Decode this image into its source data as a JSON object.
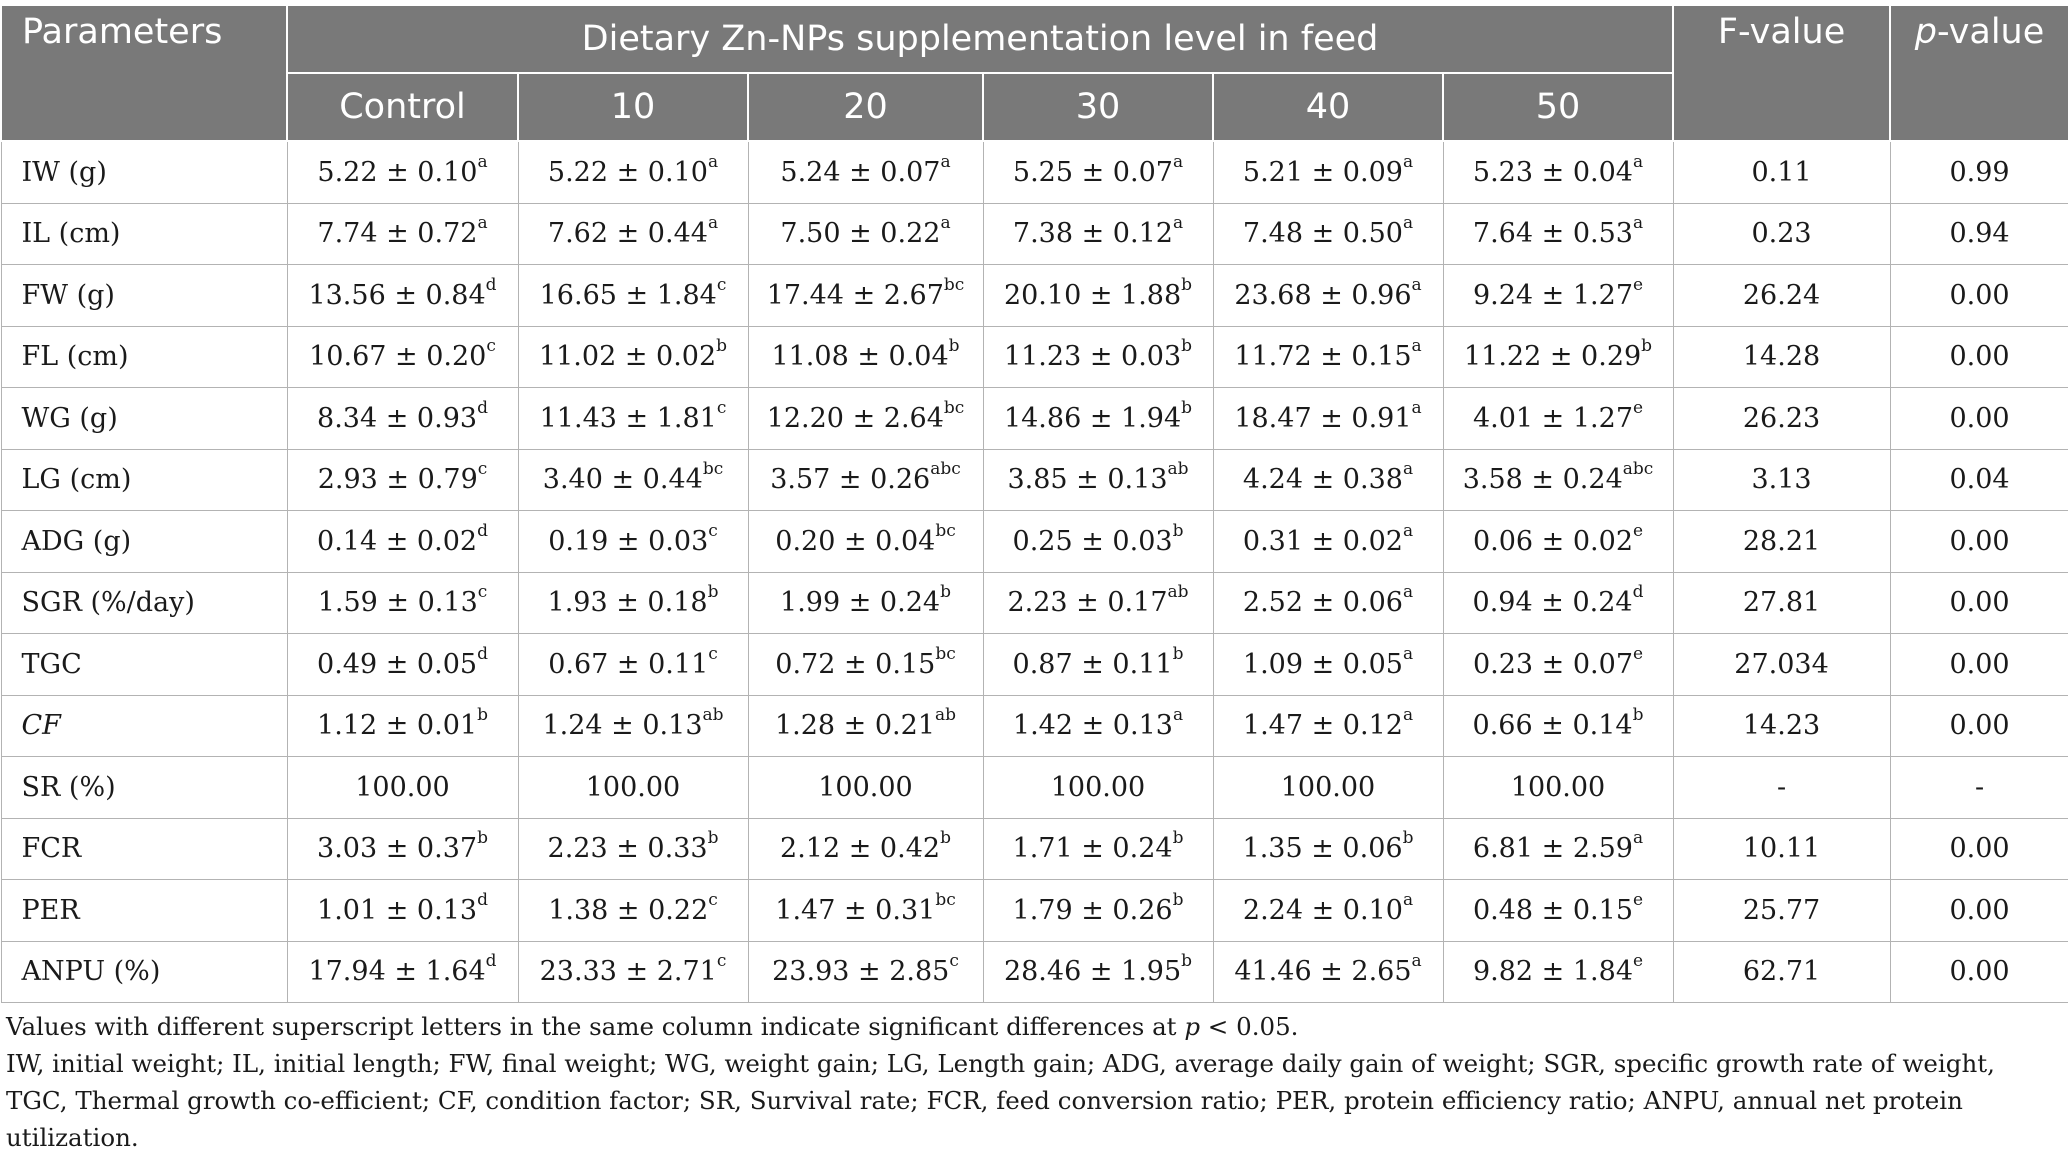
{
  "table": {
    "header": {
      "parameters": "Parameters",
      "group_title": "Dietary Zn-NPs supplementation level in feed",
      "f_value": "F-value",
      "p_value_italic": "p",
      "p_value_rest": "-value",
      "levels": [
        "Control",
        "10",
        "20",
        "30",
        "40",
        "50"
      ]
    },
    "rows": [
      {
        "param": "IW (g)",
        "italic": false,
        "cells": [
          [
            "5.22 ± 0.10",
            "a"
          ],
          [
            "5.22 ± 0.10",
            "a"
          ],
          [
            "5.24 ± 0.07",
            "a"
          ],
          [
            "5.25 ± 0.07",
            "a"
          ],
          [
            "5.21 ± 0.09",
            "a"
          ],
          [
            "5.23 ± 0.04",
            "a"
          ]
        ],
        "f": "0.11",
        "p": "0.99"
      },
      {
        "param": "IL (cm)",
        "italic": false,
        "cells": [
          [
            "7.74 ± 0.72",
            "a"
          ],
          [
            "7.62 ± 0.44",
            "a"
          ],
          [
            "7.50 ± 0.22",
            "a"
          ],
          [
            "7.38 ± 0.12",
            "a"
          ],
          [
            "7.48 ± 0.50",
            "a"
          ],
          [
            "7.64 ± 0.53",
            "a"
          ]
        ],
        "f": "0.23",
        "p": "0.94"
      },
      {
        "param": "FW (g)",
        "italic": false,
        "cells": [
          [
            "13.56 ± 0.84",
            "d"
          ],
          [
            "16.65 ± 1.84",
            "c"
          ],
          [
            "17.44 ± 2.67",
            "bc"
          ],
          [
            "20.10 ± 1.88",
            "b"
          ],
          [
            "23.68 ± 0.96",
            "a"
          ],
          [
            "9.24 ± 1.27",
            "e"
          ]
        ],
        "f": "26.24",
        "p": "0.00"
      },
      {
        "param": "FL (cm)",
        "italic": false,
        "cells": [
          [
            "10.67 ± 0.20",
            "c"
          ],
          [
            "11.02 ± 0.02",
            "b"
          ],
          [
            "11.08 ± 0.04",
            "b"
          ],
          [
            "11.23 ± 0.03",
            "b"
          ],
          [
            "11.72 ± 0.15",
            "a"
          ],
          [
            "11.22 ± 0.29",
            "b"
          ]
        ],
        "f": "14.28",
        "p": "0.00"
      },
      {
        "param": "WG (g)",
        "italic": false,
        "cells": [
          [
            "8.34 ± 0.93",
            "d"
          ],
          [
            "11.43 ± 1.81",
            "c"
          ],
          [
            "12.20 ± 2.64",
            "bc"
          ],
          [
            "14.86 ± 1.94",
            "b"
          ],
          [
            "18.47 ± 0.91",
            "a"
          ],
          [
            "4.01 ± 1.27",
            "e"
          ]
        ],
        "f": "26.23",
        "p": "0.00"
      },
      {
        "param": "LG (cm)",
        "italic": false,
        "cells": [
          [
            "2.93 ± 0.79",
            "c"
          ],
          [
            "3.40 ± 0.44",
            "bc"
          ],
          [
            "3.57 ± 0.26",
            "abc"
          ],
          [
            "3.85 ± 0.13",
            "ab"
          ],
          [
            "4.24 ± 0.38",
            "a"
          ],
          [
            "3.58 ± 0.24",
            "abc"
          ]
        ],
        "f": "3.13",
        "p": "0.04"
      },
      {
        "param": "ADG (g)",
        "italic": false,
        "cells": [
          [
            "0.14 ± 0.02",
            "d"
          ],
          [
            "0.19 ± 0.03",
            "c"
          ],
          [
            "0.20 ± 0.04",
            "bc"
          ],
          [
            "0.25 ± 0.03",
            "b"
          ],
          [
            "0.31 ± 0.02",
            "a"
          ],
          [
            "0.06 ± 0.02",
            "e"
          ]
        ],
        "f": "28.21",
        "p": "0.00"
      },
      {
        "param": "SGR (%/day)",
        "italic": false,
        "cells": [
          [
            "1.59 ± 0.13",
            "c"
          ],
          [
            "1.93 ± 0.18",
            "b"
          ],
          [
            "1.99 ± 0.24",
            "b"
          ],
          [
            "2.23 ± 0.17",
            "ab"
          ],
          [
            "2.52 ± 0.06",
            "a"
          ],
          [
            "0.94 ± 0.24",
            "d"
          ]
        ],
        "f": "27.81",
        "p": "0.00"
      },
      {
        "param": "TGC",
        "italic": false,
        "cells": [
          [
            "0.49 ± 0.05",
            "d"
          ],
          [
            "0.67 ± 0.11",
            "c"
          ],
          [
            "0.72 ± 0.15",
            "bc"
          ],
          [
            "0.87 ± 0.11",
            "b"
          ],
          [
            "1.09 ± 0.05",
            "a"
          ],
          [
            "0.23 ± 0.07",
            "e"
          ]
        ],
        "f": "27.034",
        "p": "0.00"
      },
      {
        "param": "CF",
        "italic": true,
        "cells": [
          [
            "1.12 ± 0.01",
            "b"
          ],
          [
            "1.24 ± 0.13",
            "ab"
          ],
          [
            "1.28 ± 0.21",
            "ab"
          ],
          [
            "1.42 ± 0.13",
            "a"
          ],
          [
            "1.47 ± 0.12",
            "a"
          ],
          [
            "0.66 ± 0.14",
            "b"
          ]
        ],
        "f": "14.23",
        "p": "0.00"
      },
      {
        "param": "SR (%)",
        "italic": false,
        "cells": [
          [
            "100.00",
            ""
          ],
          [
            "100.00",
            ""
          ],
          [
            "100.00",
            ""
          ],
          [
            "100.00",
            ""
          ],
          [
            "100.00",
            ""
          ],
          [
            "100.00",
            ""
          ]
        ],
        "f": "-",
        "p": "-"
      },
      {
        "param": "FCR",
        "italic": false,
        "cells": [
          [
            "3.03 ± 0.37",
            "b"
          ],
          [
            "2.23 ± 0.33",
            "b"
          ],
          [
            "2.12 ± 0.42",
            "b"
          ],
          [
            "1.71 ± 0.24",
            "b"
          ],
          [
            "1.35 ± 0.06",
            "b"
          ],
          [
            "6.81 ± 2.59",
            "a"
          ]
        ],
        "f": "10.11",
        "p": "0.00"
      },
      {
        "param": "PER",
        "italic": false,
        "cells": [
          [
            "1.01 ± 0.13",
            "d"
          ],
          [
            "1.38 ± 0.22",
            "c"
          ],
          [
            "1.47 ± 0.31",
            "bc"
          ],
          [
            "1.79 ± 0.26",
            "b"
          ],
          [
            "2.24 ± 0.10",
            "a"
          ],
          [
            "0.48 ± 0.15",
            "e"
          ]
        ],
        "f": "25.77",
        "p": "0.00"
      },
      {
        "param": "ANPU (%)",
        "italic": false,
        "cells": [
          [
            "17.94 ± 1.64",
            "d"
          ],
          [
            "23.33 ± 2.71",
            "c"
          ],
          [
            "23.93 ± 2.85",
            "c"
          ],
          [
            "28.46 ± 1.95",
            "b"
          ],
          [
            "41.46 ± 2.65",
            "a"
          ],
          [
            "9.82 ± 1.84",
            "e"
          ]
        ],
        "f": "62.71",
        "p": "0.00"
      }
    ]
  },
  "notes": {
    "line1_pre": "Values with different superscript letters in the same column indicate significant differences at ",
    "line1_p": "p",
    "line1_post": " < 0.05.",
    "abbreviations": "IW, initial weight; IL, initial length; FW, final weight; WG, weight gain; LG, Length gain; ADG, average daily gain of weight; SGR, specific growth rate of weight, TGC, Thermal growth co-efficient; CF, condition factor; SR, Survival rate; FCR, feed conversion ratio; PER, protein efficiency ratio; ANPU, annual net protein utilization."
  }
}
